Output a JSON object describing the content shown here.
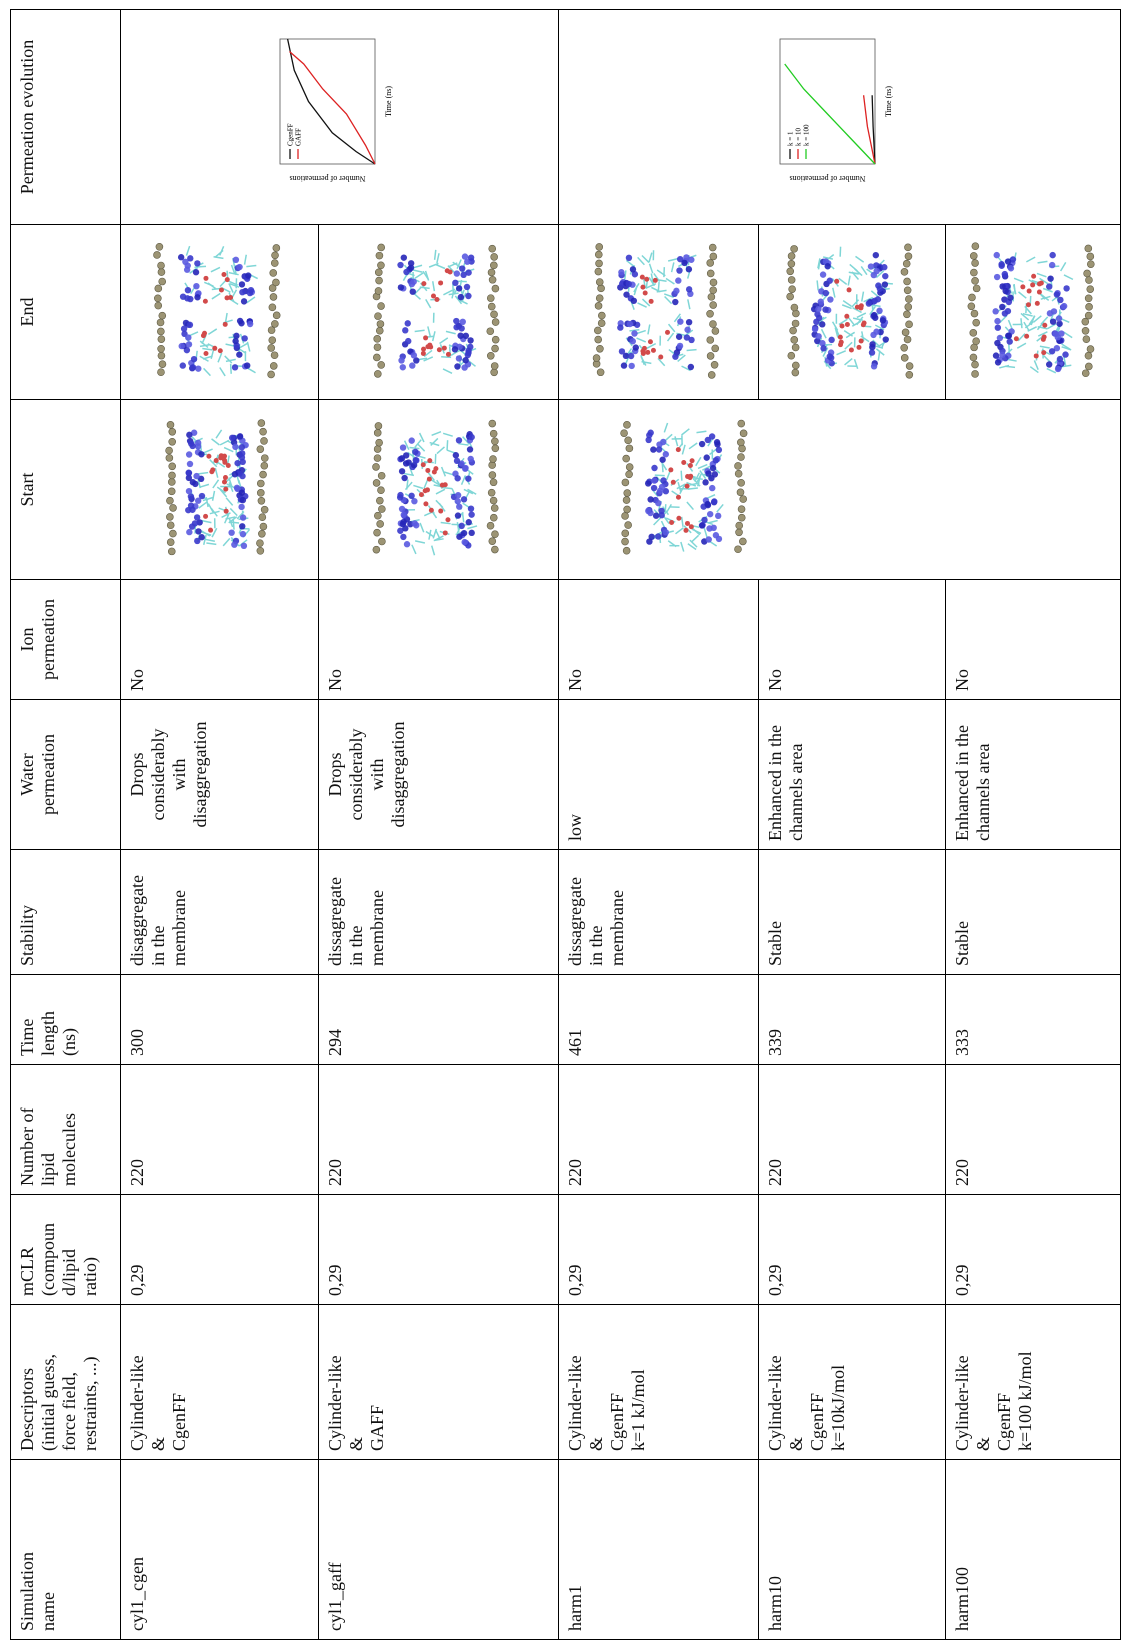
{
  "table": {
    "header": [
      "Simulation\nname",
      "Descriptors\n(initial guess,\nforce field,\nrestraints, ...)",
      "mCLR\n(compoun\nd/lipid\nratio)",
      "Number of\nlipid\nmolecules",
      "Time\nlength\n(ns)",
      "Stability",
      "Water\npermeation",
      "Ion\npermeation",
      "Start",
      "End",
      "Permeation evolution"
    ],
    "rows": [
      [
        "cyl1_cgen",
        "Cylinder-like\n&\nCgenFF",
        "0,29",
        "220",
        "300",
        "disaggregate\nin the\nmembrane",
        "Drops\nconsiderably\nwith\ndisaggregation",
        "No"
      ],
      [
        "cyl1_gaff",
        "Cylinder-like\n&\nGAFF",
        "0,29",
        "220",
        "294",
        "dissagregate\nin the\nmembrane",
        "Drops\nconsiderably\nwith\ndisaggregation",
        "No"
      ],
      [
        "harm1",
        "Cylinder-like\n&\nCgenFF\nk=1 kJ/mol",
        "0,29",
        "220",
        "461",
        "dissagregate\nin the\nmembrane",
        "low",
        "No"
      ],
      [
        "harm10",
        "Cylinder-like\n&\nCgenFF\nk=10kJ/mol",
        "0,29",
        "220",
        "339",
        "Stable",
        "Enhanced in the\nchannels area",
        "No"
      ],
      [
        "harm100",
        "Cylinder-like\n&\nCgenFF\nk=100 kJ/mol",
        "0,29",
        "220",
        "333",
        "Stable",
        "Enhanced in the\nchannels area",
        "No"
      ]
    ],
    "plots": [
      {
        "legend": [
          "CgenFF",
          "GAFF"
        ],
        "x_label": "Time (ns)",
        "y_label": "Number of permeations"
      },
      {
        "legend": [
          "k = 1",
          "k = 10",
          "k = 100"
        ],
        "x_label": "Time (ns)",
        "y_label": "Number of permeations"
      }
    ]
  }
}
